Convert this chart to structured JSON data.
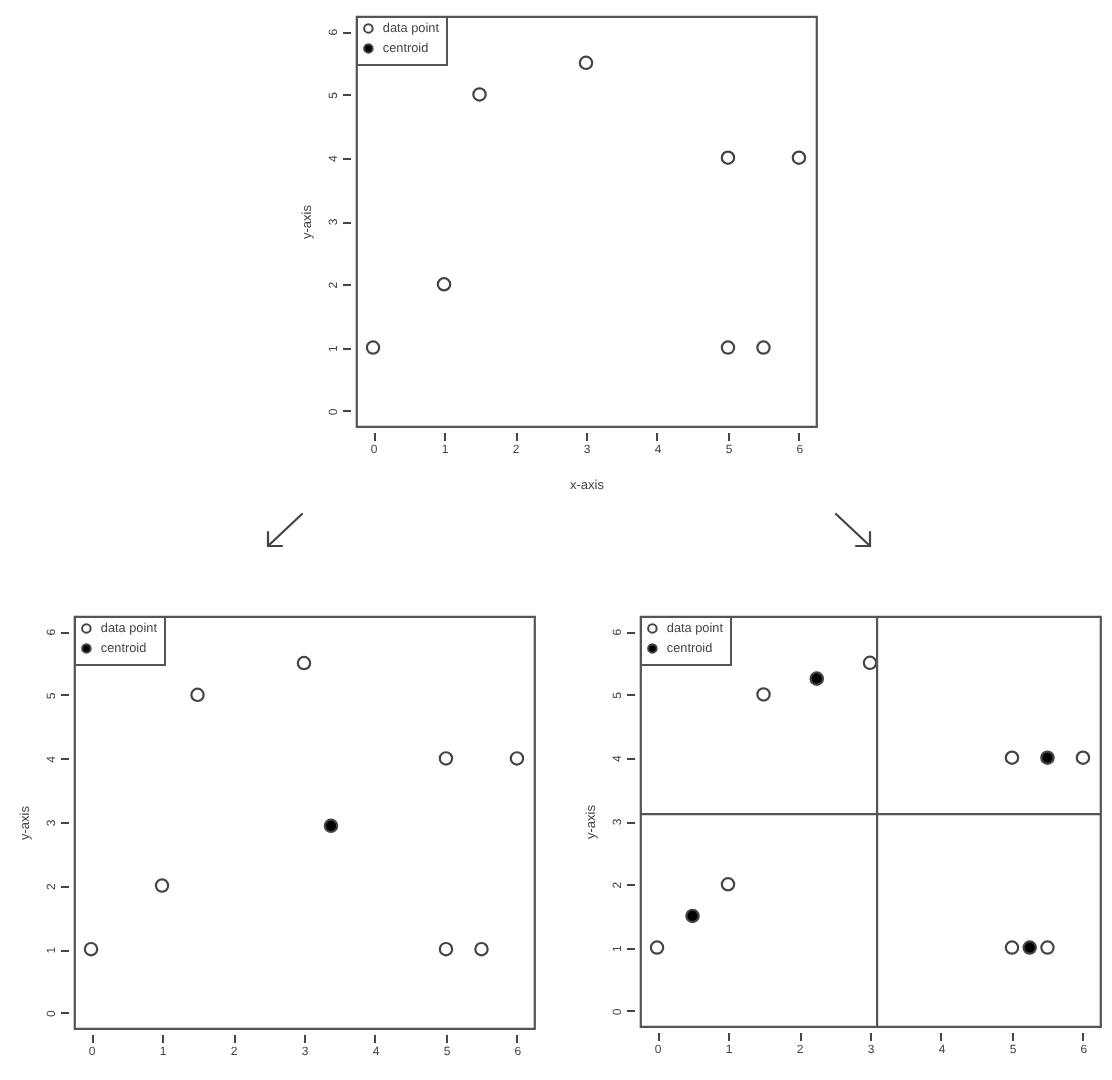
{
  "chart_data": [
    {
      "type": "scatter",
      "xlabel": "x-axis",
      "ylabel": "y-axis",
      "xlim": [
        -0.24,
        6.24
      ],
      "ylim": [
        -0.24,
        6.24
      ],
      "xticks": [
        0,
        1,
        2,
        3,
        4,
        5,
        6
      ],
      "yticks": [
        0,
        1,
        2,
        3,
        4,
        5,
        6
      ],
      "grid": false,
      "legend": "top left",
      "marker": "circle",
      "series": [
        {
          "name": "data point",
          "color": "#ffffff",
          "x": [
            0,
            1,
            1.5,
            3,
            5,
            6,
            5,
            5.5
          ],
          "values": [
            1,
            2,
            5,
            5.5,
            4,
            4,
            1,
            1
          ]
        },
        {
          "name": "centroid",
          "color": "#000000"
        }
      ]
    },
    {
      "type": "scatter",
      "ylabel": "y-axis",
      "xlim": [
        -0.24,
        6.24
      ],
      "ylim": [
        -0.24,
        6.24
      ],
      "xticks": [
        0,
        1,
        2,
        3,
        4,
        5,
        6
      ],
      "yticks": [
        0,
        1,
        2,
        3,
        4,
        5,
        6
      ],
      "grid": false,
      "legend": "top left",
      "marker": "circle",
      "series": [
        {
          "name": "data point",
          "color": "#ffffff",
          "x": [
            0,
            1,
            1.5,
            3,
            5,
            6,
            5,
            5.5
          ],
          "values": [
            1,
            2,
            5,
            5.5,
            4,
            4,
            1,
            1
          ]
        },
        {
          "name": "centroid",
          "color": "#000000",
          "x": [
            3.38
          ],
          "values": [
            2.94
          ]
        }
      ]
    },
    {
      "type": "scatter",
      "ylabel": "y-axis",
      "xlim": [
        -0.24,
        6.24
      ],
      "ylim": [
        -0.24,
        6.24
      ],
      "xticks": [
        0,
        1,
        2,
        3,
        4,
        5,
        6
      ],
      "yticks": [
        0,
        1,
        2,
        3,
        4,
        5,
        6
      ],
      "grid": false,
      "legend": "top left",
      "marker": "circle",
      "series": [
        {
          "name": "data point",
          "color": "#ffffff",
          "x": [
            0,
            1,
            1.5,
            3,
            5,
            6,
            5,
            5.5
          ],
          "values": [
            1,
            2,
            5,
            5.5,
            4,
            4,
            1,
            1
          ]
        },
        {
          "name": "centroid",
          "color": "#000000",
          "x": [
            0.5,
            2.25,
            5.5,
            5.25
          ],
          "values": [
            1.5,
            5.25,
            4,
            1
          ]
        }
      ],
      "ref_lines": [
        {
          "axis": "x",
          "value": 3.1
        },
        {
          "axis": "y",
          "value": 3.11
        }
      ]
    }
  ]
}
